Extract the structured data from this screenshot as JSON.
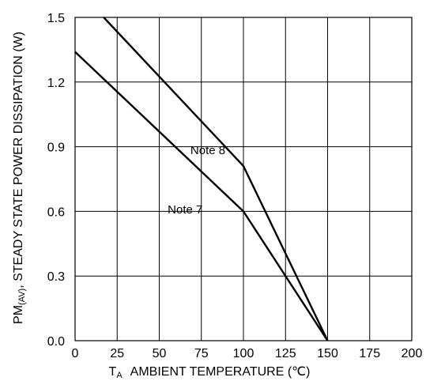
{
  "chart_data": {
    "type": "line",
    "x": [
      0,
      25,
      50,
      75,
      100,
      125,
      150,
      175,
      200
    ],
    "xlim": [
      0,
      200
    ],
    "ylim": [
      0,
      1.5
    ],
    "xticks": [
      "0",
      "25",
      "50",
      "75",
      "100",
      "125",
      "150",
      "175",
      "200"
    ],
    "yticks": [
      "0.0",
      "0.3",
      "0.6",
      "0.9",
      "1.2",
      "1.5"
    ],
    "grid": true,
    "xlabel": {
      "main": "T",
      "sub": "A",
      "rest": "AMBIENT TEMPERATURE (℃)"
    },
    "ylabel": {
      "main": "PM",
      "sub": "(AV)",
      "rest": ", STEADY STATE POWER DISSIPATION (W)"
    },
    "series": [
      {
        "name": "Note 8",
        "points": [
          [
            17,
            1.5
          ],
          [
            100,
            0.81
          ],
          [
            150,
            0.0
          ]
        ]
      },
      {
        "name": "Note 7",
        "points": [
          [
            0,
            1.34
          ],
          [
            100,
            0.6
          ],
          [
            150,
            0.0
          ]
        ]
      }
    ],
    "annotations": [
      {
        "text": "Note 8",
        "series": 0
      },
      {
        "text": "Note 7",
        "series": 1
      }
    ]
  }
}
